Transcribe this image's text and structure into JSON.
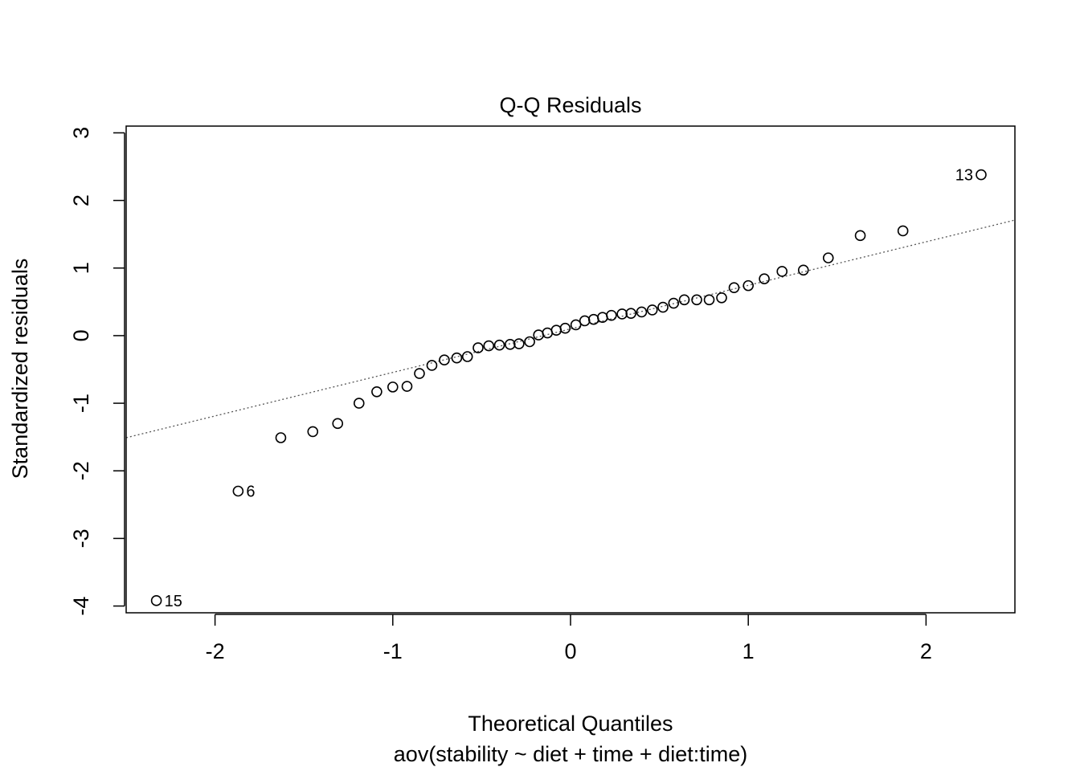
{
  "chart_data": {
    "type": "scatter",
    "title": "Q-Q Residuals",
    "xlabel": "Theoretical Quantiles",
    "subtitle": "aov(stability ~ diet + time + diet:time)",
    "ylabel": "Standardized residuals",
    "xlim": [
      -2.5,
      2.5
    ],
    "ylim": [
      -4.1,
      3.1
    ],
    "xticks": [
      -2,
      -1,
      0,
      1,
      2
    ],
    "yticks": [
      -4,
      -3,
      -2,
      -1,
      0,
      1,
      2,
      3
    ],
    "grid": false,
    "reference_line": {
      "x": [
        -2.5,
        2.5
      ],
      "y": [
        -1.51,
        1.71
      ]
    },
    "points": {
      "x": [
        -2.33,
        -1.87,
        -1.63,
        -1.45,
        -1.31,
        -1.19,
        -1.09,
        -1.0,
        -0.92,
        -0.85,
        -0.78,
        -0.71,
        -0.64,
        -0.58,
        -0.52,
        -0.46,
        -0.4,
        -0.34,
        -0.29,
        -0.23,
        -0.18,
        -0.13,
        -0.08,
        -0.03,
        0.03,
        0.08,
        0.13,
        0.18,
        0.23,
        0.29,
        0.34,
        0.4,
        0.46,
        0.52,
        0.58,
        0.64,
        0.71,
        0.78,
        0.85,
        0.92,
        1.0,
        1.09,
        1.19,
        1.31,
        1.45,
        1.63,
        1.87,
        2.31
      ],
      "y": [
        -3.92,
        -2.3,
        -1.51,
        -1.42,
        -1.3,
        -1.0,
        -0.83,
        -0.76,
        -0.75,
        -0.56,
        -0.44,
        -0.36,
        -0.33,
        -0.31,
        -0.18,
        -0.15,
        -0.14,
        -0.13,
        -0.12,
        -0.09,
        0.01,
        0.04,
        0.08,
        0.11,
        0.16,
        0.22,
        0.24,
        0.27,
        0.3,
        0.32,
        0.33,
        0.35,
        0.38,
        0.42,
        0.48,
        0.53,
        0.53,
        0.53,
        0.56,
        0.71,
        0.74,
        0.84,
        0.95,
        0.97,
        1.15,
        1.48,
        1.55,
        2.38
      ]
    },
    "point_labels": [
      {
        "index": 0,
        "text": "15",
        "side": "right"
      },
      {
        "index": 1,
        "text": "6",
        "side": "right"
      },
      {
        "index": 47,
        "text": "13",
        "side": "left"
      }
    ]
  }
}
